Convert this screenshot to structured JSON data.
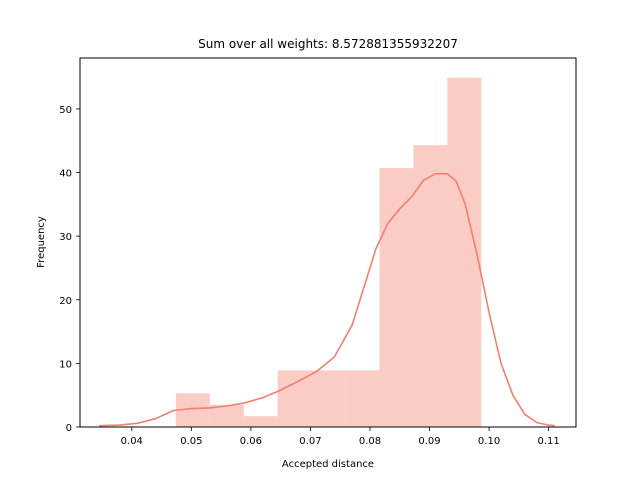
{
  "chart_data": {
    "type": "bar",
    "title": "Sum over all weights: 8.572881355932207",
    "xlabel": "Accepted distance",
    "ylabel": "Frequency",
    "xlim": [
      0.0313,
      0.1146
    ],
    "ylim": [
      0,
      58
    ],
    "grid": false,
    "legend": "none",
    "x_ticks": [
      "0.04",
      "0.05",
      "0.06",
      "0.07",
      "0.08",
      "0.09",
      "0.10",
      "0.11"
    ],
    "y_ticks": [
      "0",
      "10",
      "20",
      "30",
      "40",
      "50"
    ],
    "bars": [
      {
        "x0": 0.0474,
        "x1": 0.0531,
        "value": 5.3
      },
      {
        "x0": 0.0531,
        "x1": 0.0588,
        "value": 3.5
      },
      {
        "x0": 0.0588,
        "x1": 0.0645,
        "value": 1.7
      },
      {
        "x0": 0.0645,
        "x1": 0.0702,
        "value": 8.9
      },
      {
        "x0": 0.0702,
        "x1": 0.0759,
        "value": 8.9
      },
      {
        "x0": 0.0759,
        "x1": 0.0816,
        "value": 8.9
      },
      {
        "x0": 0.0816,
        "x1": 0.0873,
        "value": 40.7
      },
      {
        "x0": 0.0873,
        "x1": 0.093,
        "value": 44.3
      },
      {
        "x0": 0.093,
        "x1": 0.0987,
        "value": 54.9
      }
    ],
    "kde_curve": {
      "x": [
        0.0345,
        0.038,
        0.041,
        0.044,
        0.047,
        0.05,
        0.053,
        0.056,
        0.059,
        0.062,
        0.065,
        0.068,
        0.071,
        0.074,
        0.077,
        0.079,
        0.081,
        0.083,
        0.085,
        0.087,
        0.089,
        0.091,
        0.093,
        0.0945,
        0.096,
        0.098,
        0.1,
        0.102,
        0.104,
        0.106,
        0.108,
        0.11,
        0.111
      ],
      "y": [
        0.2,
        0.3,
        0.6,
        1.3,
        2.6,
        2.9,
        3.0,
        3.3,
        3.8,
        4.6,
        5.8,
        7.2,
        8.7,
        11.0,
        16.0,
        22.0,
        28.0,
        32.0,
        34.3,
        36.2,
        38.8,
        39.8,
        39.8,
        38.6,
        35.0,
        27.0,
        18.0,
        10.0,
        5.0,
        2.0,
        0.7,
        0.3,
        0.2
      ]
    },
    "bar_color": "#fbcbc5",
    "line_color": "#f08070",
    "axis_color": "#000000"
  }
}
